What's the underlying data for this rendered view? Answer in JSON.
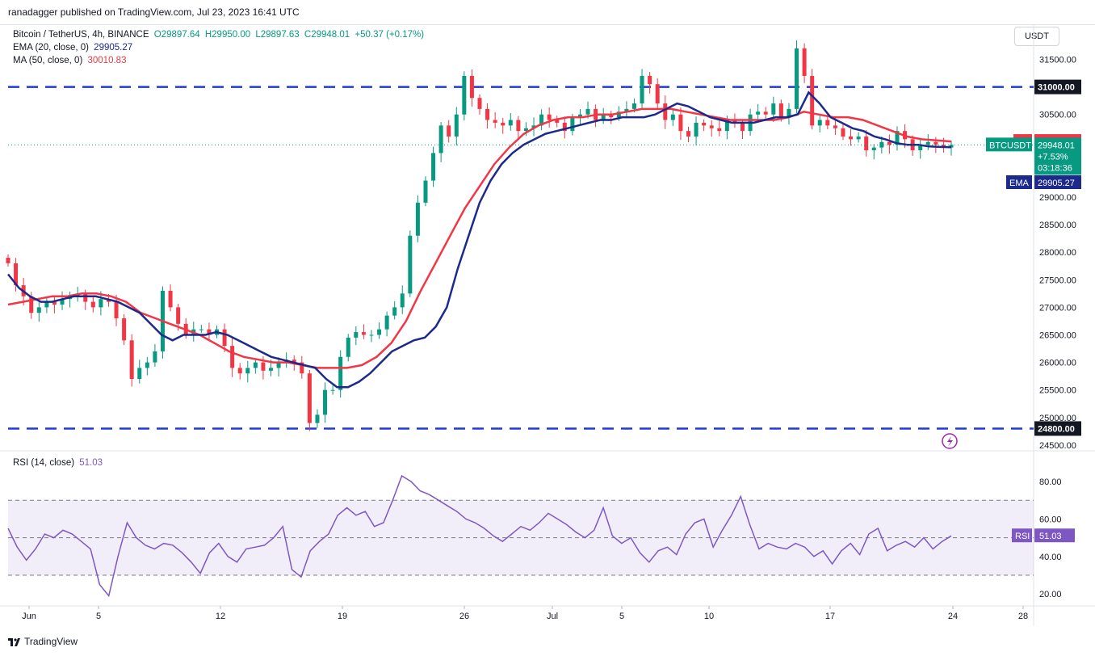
{
  "header": {
    "published": "ranadagger published on TradingView.com, Jul 23, 2023 16:41 UTC"
  },
  "legend": {
    "symbol": "Bitcoin / TetherUS, 4h, BINANCE",
    "ohlc": {
      "o": "O29897.64",
      "h": "H29950.00",
      "l": "L29897.63",
      "c": "C29948.01",
      "chg": "+50.37 (+0.17%)"
    },
    "ema_label": "EMA (20, close, 0)",
    "ema_value": "29905.27",
    "ma_label": "MA (50, close, 0)",
    "ma_value": "30010.83",
    "rsi_label": "RSI (14, close)",
    "rsi_value": "51.03"
  },
  "currency_button": "USDT",
  "footer": "TradingView",
  "colors": {
    "up": "#089981",
    "down": "#f23645",
    "ema": "#1c2a8c",
    "ma": "#f23645",
    "rsi": "#7e57c2",
    "level": "#1e3ae0"
  },
  "chart_data": [
    {
      "type": "candlestick",
      "title": "Bitcoin / TetherUS, 4h, BINANCE",
      "y_ticks": [
        "31500.00",
        "30500.00",
        "30000.00",
        "29000.00",
        "28500.00",
        "28000.00",
        "27500.00",
        "27000.00",
        "26500.00",
        "26000.00",
        "25500.00",
        "25000.00",
        "24500.00"
      ],
      "x_ticks": [
        "Jun",
        "5",
        "12",
        "19",
        "26",
        "Jul",
        "5",
        "10",
        "17",
        "24",
        "28"
      ],
      "ylim": [
        24400,
        31800
      ],
      "horizontal_levels": [
        {
          "value": 31000,
          "label": "31000.00"
        },
        {
          "value": 24800,
          "label": "24800.00"
        }
      ],
      "last_price": {
        "label": "BTCUSDT",
        "value": "29948.01",
        "change": "+7.53%",
        "countdown": "03:18:36"
      },
      "ma_tag": {
        "label": "MA",
        "value": "30010.83"
      },
      "ema_tag": {
        "label": "EMA",
        "value": "29905.27"
      },
      "closes": [
        27800,
        27400,
        27200,
        26900,
        27000,
        27100,
        27050,
        27150,
        27200,
        27250,
        27100,
        27000,
        27150,
        27100,
        26800,
        26400,
        25700,
        25900,
        26000,
        26200,
        27300,
        27000,
        26700,
        26500,
        26600,
        26600,
        26500,
        26600,
        26300,
        25900,
        25800,
        25900,
        26000,
        25850,
        25900,
        26000,
        26050,
        26000,
        25800,
        24900,
        25050,
        25500,
        25500,
        26100,
        26450,
        26550,
        26500,
        26500,
        26600,
        26850,
        27000,
        27250,
        28300,
        28900,
        29300,
        29800,
        30300,
        30100,
        30500,
        31200,
        30800,
        30600,
        30400,
        30350,
        30300,
        30400,
        30200,
        30250,
        30300,
        30500,
        30400,
        30350,
        30200,
        30450,
        30500,
        30600,
        30400,
        30500,
        30450,
        30550,
        30600,
        30700,
        31200,
        31050,
        30700,
        30400,
        30500,
        30200,
        30100,
        30350,
        30300,
        30250,
        30200,
        30400,
        30350,
        30200,
        30500,
        30550,
        30500,
        30700,
        30450,
        30600,
        31700,
        31200,
        30300,
        30400,
        30300,
        30250,
        30100,
        30050,
        30100,
        29850,
        29900,
        30000,
        29950,
        30200,
        30050,
        29850,
        29950,
        30000,
        29950,
        29900,
        29950
      ],
      "ema_20": [
        27600,
        27350,
        27200,
        27100,
        27100,
        27150,
        27200,
        27200,
        27200,
        27150,
        27100,
        27000,
        26900,
        26700,
        26500,
        26400,
        26500,
        26500,
        26500,
        26550,
        26500,
        26400,
        26300,
        26200,
        26100,
        26050,
        26000,
        25950,
        25900,
        25700,
        25550,
        25550,
        25650,
        25800,
        26000,
        26200,
        26300,
        26400,
        26450,
        26650,
        27000,
        27700,
        28300,
        28900,
        29300,
        29600,
        29800,
        29950,
        30050,
        30150,
        30200,
        30250,
        30300,
        30350,
        30400,
        30400,
        30450,
        30450,
        30450,
        30500,
        30600,
        30700,
        30650,
        30550,
        30450,
        30400,
        30350,
        30350,
        30350,
        30400,
        30450,
        30450,
        30500,
        30900,
        30700,
        30450,
        30350,
        30250,
        30200,
        30100,
        30050,
        29980,
        29950,
        29950,
        29920,
        29910,
        29905
      ],
      "ma_50": [
        27050,
        27100,
        27150,
        27200,
        27200,
        27250,
        27250,
        27200,
        27100,
        26900,
        26800,
        26700,
        26600,
        26500,
        26350,
        26200,
        26100,
        26050,
        26000,
        26000,
        25950,
        25900,
        25900,
        25900,
        25950,
        26100,
        26350,
        26750,
        27300,
        27800,
        28300,
        28800,
        29200,
        29600,
        29900,
        30150,
        30300,
        30400,
        30450,
        30450,
        30500,
        30500,
        30550,
        30600,
        30600,
        30600,
        30550,
        30500,
        30450,
        30400,
        30400,
        30400,
        30400,
        30450,
        30550,
        30500,
        30450,
        30450,
        30400,
        30300,
        30200,
        30100,
        30050,
        30030,
        30010
      ]
    },
    {
      "type": "line",
      "title": "RSI (14, close)",
      "y_ticks": [
        "80.00",
        "60.00",
        "40.00",
        "20.00"
      ],
      "ylim": [
        14,
        86
      ],
      "bands": [
        70,
        50,
        30
      ],
      "values": [
        55,
        45,
        38,
        44,
        52,
        50,
        54,
        52,
        48,
        44,
        25,
        19,
        40,
        58,
        50,
        46,
        44,
        47,
        46,
        42,
        37,
        31,
        42,
        47,
        40,
        37,
        44,
        45,
        46,
        50,
        56,
        33,
        29,
        43,
        48,
        52,
        62,
        66,
        62,
        64,
        56,
        58,
        70,
        83,
        80,
        75,
        73,
        70,
        67,
        64,
        60,
        58,
        55,
        51,
        48,
        52,
        56,
        54,
        58,
        63,
        60,
        57,
        53,
        50,
        54,
        66,
        51,
        47,
        50,
        42,
        37,
        43,
        45,
        41,
        52,
        58,
        60,
        45,
        54,
        62,
        72,
        57,
        44,
        47,
        45,
        44,
        47,
        45,
        40,
        43,
        36,
        43,
        47,
        41,
        52,
        55,
        43,
        46,
        48,
        45,
        50,
        44,
        48,
        51
      ],
      "current": {
        "label": "RSI",
        "value": "51.03"
      }
    }
  ]
}
